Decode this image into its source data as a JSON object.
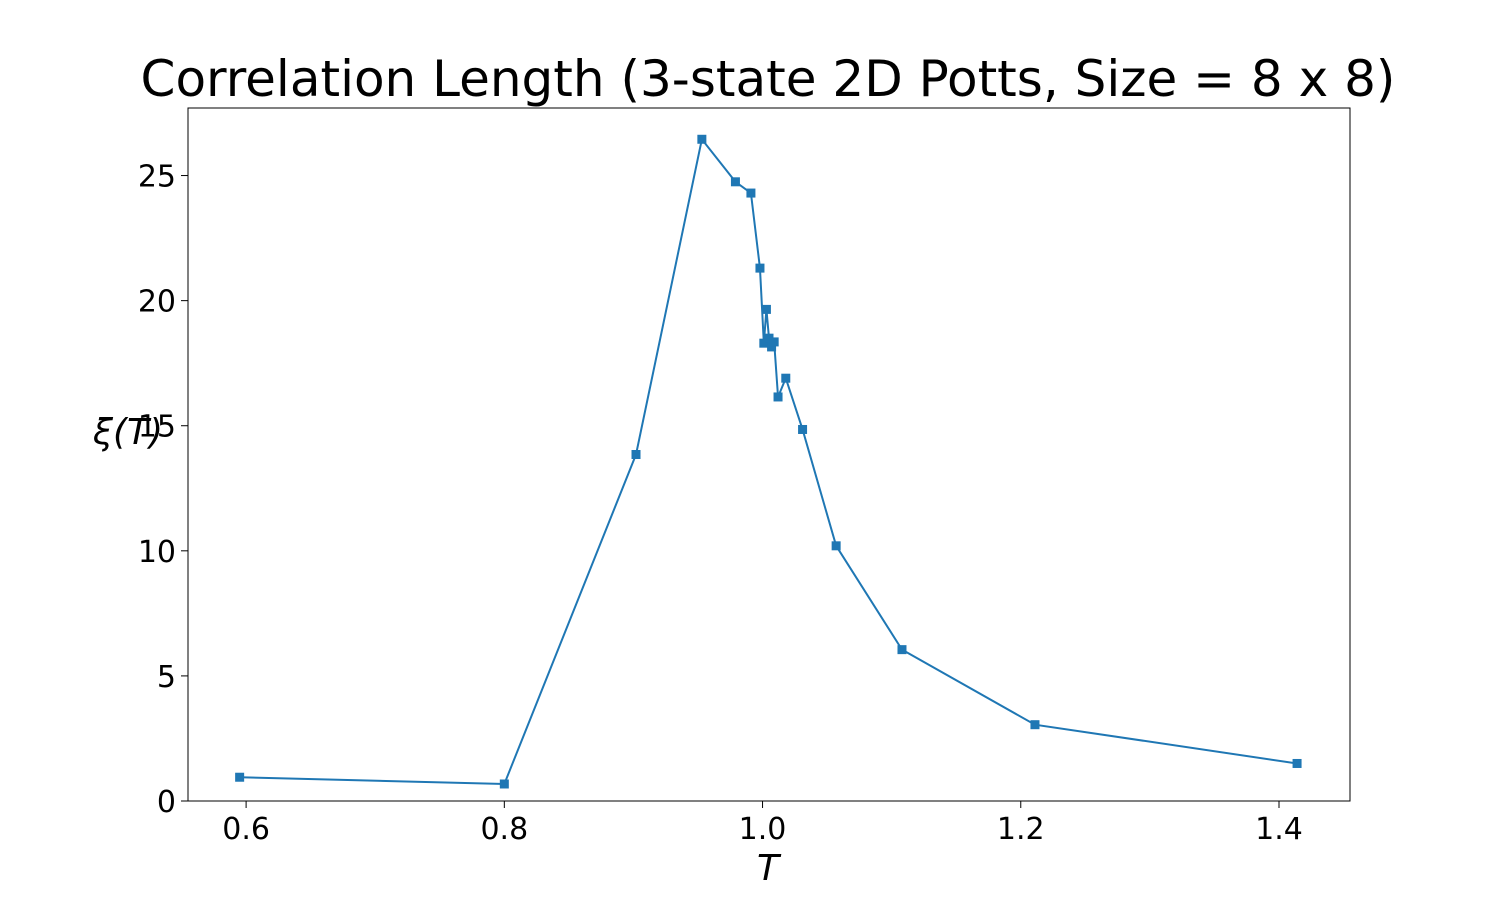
{
  "chart_data": {
    "type": "line",
    "title": "Correlation Length (3-state 2D Potts, Size = 8 x 8)",
    "xlabel": "T",
    "ylabel": "ξ(T)",
    "xlim": [
      0.555,
      1.455
    ],
    "ylim": [
      0,
      27.7
    ],
    "xticks": [
      0.6,
      0.8,
      1.0,
      1.2,
      1.4
    ],
    "xtick_labels": [
      "0.6",
      "0.8",
      "1.0",
      "1.2",
      "1.4"
    ],
    "yticks": [
      0,
      5,
      10,
      15,
      20,
      25
    ],
    "ytick_labels": [
      "0",
      "5",
      "10",
      "15",
      "20",
      "25"
    ],
    "grid": false,
    "marker": "square",
    "color": "#1f77b4",
    "series": [
      {
        "x": [
          0.595,
          0.8,
          0.902,
          0.953,
          0.979,
          0.991,
          0.998,
          1.001,
          1.003,
          1.005,
          1.007,
          1.009,
          1.012,
          1.018,
          1.031,
          1.057,
          1.108,
          1.211,
          1.414
        ],
        "y": [
          0.95,
          0.68,
          13.85,
          26.45,
          24.75,
          24.3,
          21.3,
          18.3,
          19.65,
          18.5,
          18.15,
          18.35,
          16.15,
          16.9,
          14.85,
          10.2,
          6.05,
          3.05,
          1.5
        ]
      }
    ]
  }
}
